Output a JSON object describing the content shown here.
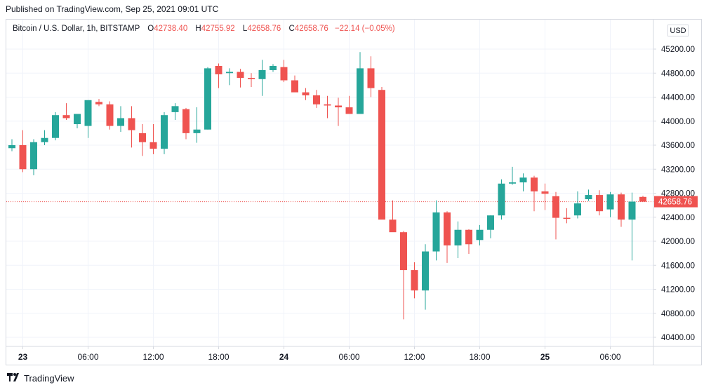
{
  "published": "Published on TradingView.com, Sep 25, 2021 09:01 UTC",
  "legend": {
    "symbol": "Bitcoin / U.S. Dollar, 1h, BITSTAMP",
    "o_label": "O",
    "o_value": "42738.40",
    "h_label": "H",
    "h_value": "42755.92",
    "l_label": "L",
    "l_value": "42658.76",
    "c_label": "C",
    "c_value": "42658.76",
    "change": "−22.14 (−0.05%)"
  },
  "currency": "USD",
  "footer": {
    "brand": "TradingView",
    "logo_icon": "tradingview-logo-icon"
  },
  "colors": {
    "up": "#26a69a",
    "down": "#ef5350",
    "grid": "#f0f3fa",
    "text": "#131722"
  },
  "chart_data": {
    "type": "candlestick",
    "symbol": "Bitcoin / U.S. Dollar, 1h, BITSTAMP",
    "currency": "USD",
    "ylim": [
      40200,
      45400
    ],
    "y_ticks": [
      45200,
      44800,
      44400,
      44000,
      43600,
      43200,
      42800,
      42400,
      42000,
      41600,
      41200,
      40800,
      40400
    ],
    "x_ticks": [
      {
        "index": 1,
        "label": "23",
        "bold": true
      },
      {
        "index": 7,
        "label": "06:00",
        "bold": false
      },
      {
        "index": 13,
        "label": "12:00",
        "bold": false
      },
      {
        "index": 19,
        "label": "18:00",
        "bold": false
      },
      {
        "index": 25,
        "label": "24",
        "bold": true
      },
      {
        "index": 31,
        "label": "06:00",
        "bold": false
      },
      {
        "index": 37,
        "label": "12:00",
        "bold": false
      },
      {
        "index": 43,
        "label": "18:00",
        "bold": false
      },
      {
        "index": 49,
        "label": "25",
        "bold": true
      },
      {
        "index": 55,
        "label": "06:00",
        "bold": false
      }
    ],
    "last_price": 42658.76,
    "last_price_label": "42658.76",
    "candles": [
      {
        "o": 43550,
        "h": 43700,
        "l": 43500,
        "c": 43600
      },
      {
        "o": 43600,
        "h": 43850,
        "l": 43150,
        "c": 43200
      },
      {
        "o": 43200,
        "h": 43700,
        "l": 43100,
        "c": 43650
      },
      {
        "o": 43650,
        "h": 43850,
        "l": 43600,
        "c": 43720
      },
      {
        "o": 43720,
        "h": 44150,
        "l": 43680,
        "c": 44100
      },
      {
        "o": 44100,
        "h": 44300,
        "l": 44020,
        "c": 44050
      },
      {
        "o": 43950,
        "h": 44120,
        "l": 43880,
        "c": 44120
      },
      {
        "o": 43920,
        "h": 44350,
        "l": 43720,
        "c": 44350
      },
      {
        "o": 44320,
        "h": 44370,
        "l": 44250,
        "c": 44280
      },
      {
        "o": 44280,
        "h": 44330,
        "l": 43860,
        "c": 43920
      },
      {
        "o": 43920,
        "h": 44250,
        "l": 43820,
        "c": 44050
      },
      {
        "o": 44050,
        "h": 44250,
        "l": 43560,
        "c": 43850
      },
      {
        "o": 43800,
        "h": 43950,
        "l": 43420,
        "c": 43650
      },
      {
        "o": 43650,
        "h": 43950,
        "l": 43450,
        "c": 43540
      },
      {
        "o": 43540,
        "h": 44150,
        "l": 43450,
        "c": 44100
      },
      {
        "o": 44150,
        "h": 44300,
        "l": 44020,
        "c": 44250
      },
      {
        "o": 44200,
        "h": 44220,
        "l": 43700,
        "c": 43800
      },
      {
        "o": 43800,
        "h": 44230,
        "l": 43640,
        "c": 43860
      },
      {
        "o": 43860,
        "h": 44900,
        "l": 43860,
        "c": 44880
      },
      {
        "o": 44920,
        "h": 44960,
        "l": 44550,
        "c": 44780
      },
      {
        "o": 44800,
        "h": 44880,
        "l": 44600,
        "c": 44820
      },
      {
        "o": 44820,
        "h": 44870,
        "l": 44560,
        "c": 44720
      },
      {
        "o": 44720,
        "h": 44800,
        "l": 44570,
        "c": 44700
      },
      {
        "o": 44700,
        "h": 45020,
        "l": 44420,
        "c": 44850
      },
      {
        "o": 44850,
        "h": 44950,
        "l": 44820,
        "c": 44920
      },
      {
        "o": 44900,
        "h": 45020,
        "l": 44650,
        "c": 44680
      },
      {
        "o": 44680,
        "h": 44760,
        "l": 44500,
        "c": 44480
      },
      {
        "o": 44480,
        "h": 44550,
        "l": 44350,
        "c": 44430
      },
      {
        "o": 44430,
        "h": 44520,
        "l": 44220,
        "c": 44280
      },
      {
        "o": 44280,
        "h": 44420,
        "l": 44050,
        "c": 44260
      },
      {
        "o": 44260,
        "h": 44390,
        "l": 43920,
        "c": 44230
      },
      {
        "o": 44230,
        "h": 44420,
        "l": 44130,
        "c": 44120
      },
      {
        "o": 44120,
        "h": 45150,
        "l": 44120,
        "c": 44880
      },
      {
        "o": 44880,
        "h": 45080,
        "l": 44400,
        "c": 44550
      },
      {
        "o": 44520,
        "h": 44570,
        "l": 42380,
        "c": 42360
      },
      {
        "o": 42360,
        "h": 42680,
        "l": 42200,
        "c": 42150
      },
      {
        "o": 42150,
        "h": 42170,
        "l": 40700,
        "c": 41520
      },
      {
        "o": 41520,
        "h": 41650,
        "l": 41050,
        "c": 41180
      },
      {
        "o": 41180,
        "h": 41950,
        "l": 40860,
        "c": 41830
      },
      {
        "o": 41830,
        "h": 42680,
        "l": 41680,
        "c": 42480
      },
      {
        "o": 42480,
        "h": 42500,
        "l": 41640,
        "c": 41930
      },
      {
        "o": 41930,
        "h": 42330,
        "l": 41720,
        "c": 42190
      },
      {
        "o": 42190,
        "h": 42200,
        "l": 41790,
        "c": 41950
      },
      {
        "o": 42020,
        "h": 42270,
        "l": 41930,
        "c": 42190
      },
      {
        "o": 42190,
        "h": 42430,
        "l": 42050,
        "c": 42430
      },
      {
        "o": 42430,
        "h": 43030,
        "l": 42360,
        "c": 42960
      },
      {
        "o": 42960,
        "h": 43240,
        "l": 42940,
        "c": 42980
      },
      {
        "o": 42980,
        "h": 43130,
        "l": 42830,
        "c": 43060
      },
      {
        "o": 43060,
        "h": 43090,
        "l": 42500,
        "c": 42830
      },
      {
        "o": 42830,
        "h": 42960,
        "l": 42520,
        "c": 42790
      },
      {
        "o": 42750,
        "h": 42820,
        "l": 42030,
        "c": 42390
      },
      {
        "o": 42390,
        "h": 42550,
        "l": 42300,
        "c": 42380
      },
      {
        "o": 42430,
        "h": 42830,
        "l": 42380,
        "c": 42630
      },
      {
        "o": 42700,
        "h": 42860,
        "l": 42670,
        "c": 42770
      },
      {
        "o": 42770,
        "h": 42850,
        "l": 42430,
        "c": 42500
      },
      {
        "o": 42530,
        "h": 42820,
        "l": 42400,
        "c": 42780
      },
      {
        "o": 42780,
        "h": 42810,
        "l": 42240,
        "c": 42360
      },
      {
        "o": 42360,
        "h": 42810,
        "l": 41680,
        "c": 42660
      },
      {
        "o": 42738.4,
        "h": 42755.92,
        "l": 42658.76,
        "c": 42658.76
      }
    ]
  }
}
